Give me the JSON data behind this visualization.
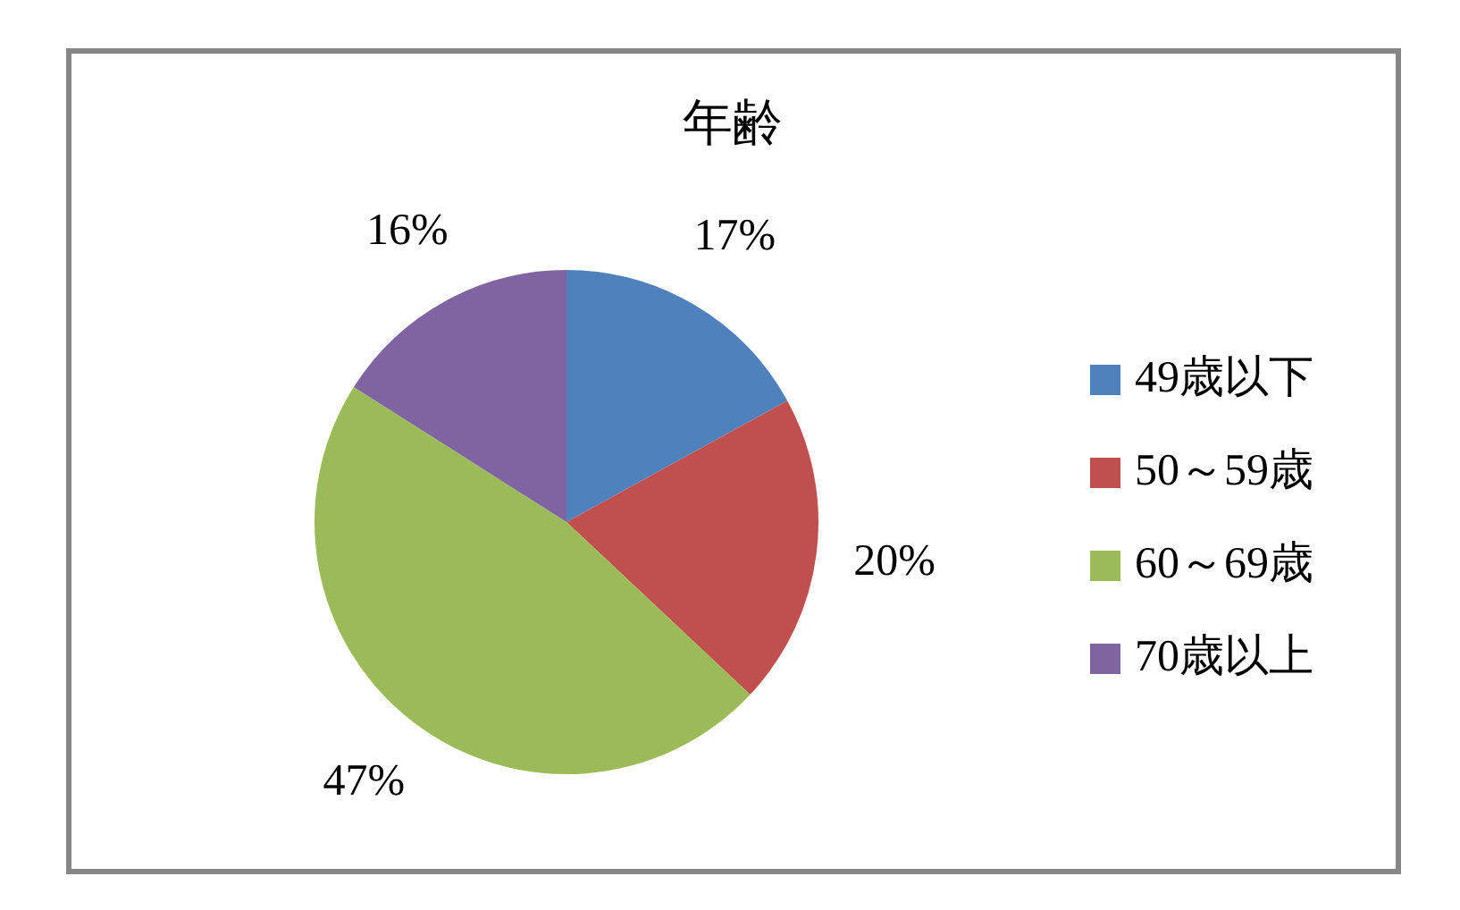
{
  "chart_data": {
    "type": "pie",
    "title": "年齢",
    "categories": [
      "49歳以下",
      "50～59歳",
      "60～69歳",
      "70歳以上"
    ],
    "values": [
      17,
      20,
      47,
      16
    ],
    "colors": [
      "#4f81bd",
      "#c0504d",
      "#9bbb59",
      "#8064a2"
    ],
    "value_labels": [
      "17%",
      "20%",
      "47%",
      "16%"
    ],
    "legend": "right"
  }
}
